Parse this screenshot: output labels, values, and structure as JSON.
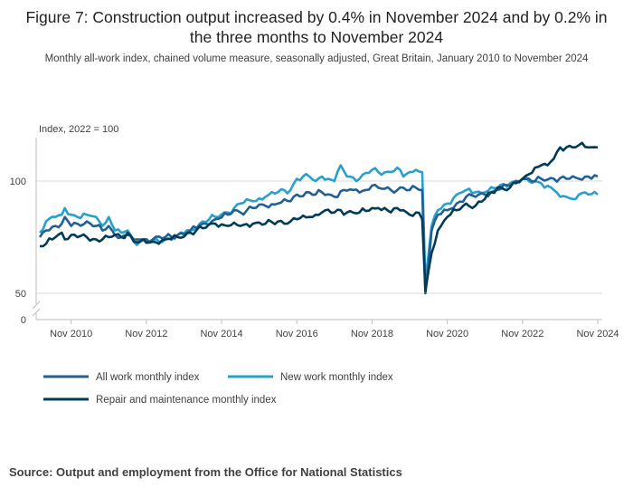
{
  "title": "Figure 7: Construction output increased by 0.4% in November 2024 and by 0.2% in the three months to November 2024",
  "subtitle": "Monthly all-work index, chained volume measure, seasonally adjusted, Great Britain, January 2010 to November 2024",
  "source": "Source: Output and employment from the Office for National Statistics",
  "colors": {
    "all_work": "#206095",
    "new_work": "#27a0cc",
    "repair": "#003c57",
    "grid": "#d9d9d9",
    "axis": "#bebebe"
  },
  "chart_data": {
    "type": "line",
    "ylabel": "Index, 2022 = 100",
    "y_ticks": [
      "0",
      "50",
      "100"
    ],
    "y_break": [
      0,
      50
    ],
    "ylim": [
      50,
      120
    ],
    "x_ticks": [
      {
        "label": "Nov 2010",
        "month_index": 10
      },
      {
        "label": "Nov 2012",
        "month_index": 34
      },
      {
        "label": "Nov 2014",
        "month_index": 58
      },
      {
        "label": "Nov 2016",
        "month_index": 82
      },
      {
        "label": "Nov 2018",
        "month_index": 106
      },
      {
        "label": "Nov 2020",
        "month_index": 130
      },
      {
        "label": "Nov 2022",
        "month_index": 154
      },
      {
        "label": "Nov 2024",
        "month_index": 178
      }
    ],
    "x_start": "Jan 2010",
    "x_end": "Nov 2024",
    "legend": [
      "All work monthly index",
      "New work monthly index",
      "Repair and maintenance monthly index"
    ],
    "series": [
      {
        "name": "All work monthly index",
        "key": "all_work",
        "keypoints": [
          [
            0,
            75
          ],
          [
            2,
            78
          ],
          [
            5,
            80
          ],
          [
            7,
            81
          ],
          [
            8,
            84
          ],
          [
            10,
            80
          ],
          [
            12,
            81
          ],
          [
            15,
            82
          ],
          [
            18,
            80
          ],
          [
            20,
            78
          ],
          [
            22,
            80
          ],
          [
            24,
            76
          ],
          [
            26,
            75
          ],
          [
            28,
            76
          ],
          [
            30,
            74
          ],
          [
            32,
            74
          ],
          [
            36,
            74
          ],
          [
            40,
            75
          ],
          [
            44,
            76
          ],
          [
            48,
            78
          ],
          [
            52,
            81
          ],
          [
            56,
            83
          ],
          [
            60,
            85
          ],
          [
            62,
            87
          ],
          [
            64,
            86
          ],
          [
            68,
            88
          ],
          [
            72,
            89
          ],
          [
            76,
            90
          ],
          [
            80,
            91
          ],
          [
            82,
            94
          ],
          [
            86,
            95
          ],
          [
            88,
            94
          ],
          [
            90,
            95
          ],
          [
            94,
            93
          ],
          [
            97,
            96
          ],
          [
            100,
            96
          ],
          [
            104,
            96
          ],
          [
            106,
            98
          ],
          [
            108,
            97
          ],
          [
            112,
            96
          ],
          [
            116,
            97
          ],
          [
            118,
            96
          ],
          [
            120,
            97
          ],
          [
            122,
            96
          ],
          [
            123,
            50
          ],
          [
            125,
            78
          ],
          [
            127,
            85
          ],
          [
            130,
            87
          ],
          [
            133,
            90
          ],
          [
            136,
            93
          ],
          [
            139,
            93
          ],
          [
            142,
            94
          ],
          [
            146,
            96
          ],
          [
            150,
            98
          ],
          [
            154,
            101
          ],
          [
            158,
            100
          ],
          [
            160,
            101
          ],
          [
            164,
            101
          ],
          [
            168,
            101
          ],
          [
            172,
            101
          ],
          [
            175,
            102
          ],
          [
            178,
            102
          ]
        ]
      },
      {
        "name": "New work monthly index",
        "key": "new_work",
        "keypoints": [
          [
            0,
            77
          ],
          [
            2,
            82
          ],
          [
            5,
            84
          ],
          [
            7,
            85
          ],
          [
            8,
            88
          ],
          [
            10,
            85
          ],
          [
            12,
            84
          ],
          [
            15,
            85
          ],
          [
            18,
            84
          ],
          [
            20,
            80
          ],
          [
            22,
            84
          ],
          [
            24,
            78
          ],
          [
            26,
            77
          ],
          [
            28,
            78
          ],
          [
            30,
            73
          ],
          [
            32,
            73
          ],
          [
            36,
            73
          ],
          [
            40,
            74
          ],
          [
            44,
            76
          ],
          [
            48,
            78
          ],
          [
            52,
            82
          ],
          [
            56,
            84
          ],
          [
            60,
            86
          ],
          [
            62,
            88
          ],
          [
            64,
            90
          ],
          [
            68,
            91
          ],
          [
            72,
            93
          ],
          [
            76,
            95
          ],
          [
            80,
            96
          ],
          [
            82,
            101
          ],
          [
            86,
            102
          ],
          [
            88,
            100
          ],
          [
            90,
            102
          ],
          [
            92,
            101
          ],
          [
            94,
            100
          ],
          [
            96,
            107
          ],
          [
            98,
            102
          ],
          [
            102,
            101
          ],
          [
            106,
            105
          ],
          [
            108,
            104
          ],
          [
            112,
            104
          ],
          [
            114,
            106
          ],
          [
            116,
            102
          ],
          [
            118,
            104
          ],
          [
            120,
            105
          ],
          [
            122,
            104
          ],
          [
            123,
            55
          ],
          [
            125,
            80
          ],
          [
            127,
            87
          ],
          [
            130,
            90
          ],
          [
            133,
            94
          ],
          [
            136,
            96
          ],
          [
            139,
            95
          ],
          [
            142,
            95
          ],
          [
            146,
            97
          ],
          [
            150,
            99
          ],
          [
            154,
            101
          ],
          [
            156,
            100
          ],
          [
            160,
            99
          ],
          [
            164,
            96
          ],
          [
            166,
            93
          ],
          [
            168,
            93
          ],
          [
            170,
            92
          ],
          [
            172,
            94
          ],
          [
            175,
            94
          ],
          [
            178,
            94
          ]
        ]
      },
      {
        "name": "Repair and maintenance monthly index",
        "key": "repair",
        "keypoints": [
          [
            0,
            71
          ],
          [
            2,
            72
          ],
          [
            5,
            75
          ],
          [
            7,
            77
          ],
          [
            8,
            74
          ],
          [
            10,
            76
          ],
          [
            12,
            75
          ],
          [
            15,
            75
          ],
          [
            18,
            74
          ],
          [
            20,
            74
          ],
          [
            22,
            75
          ],
          [
            24,
            76
          ],
          [
            26,
            75
          ],
          [
            28,
            77
          ],
          [
            30,
            73
          ],
          [
            32,
            73
          ],
          [
            36,
            73
          ],
          [
            40,
            74
          ],
          [
            44,
            75
          ],
          [
            48,
            77
          ],
          [
            52,
            79
          ],
          [
            56,
            81
          ],
          [
            60,
            80
          ],
          [
            64,
            80
          ],
          [
            68,
            81
          ],
          [
            72,
            81
          ],
          [
            76,
            82
          ],
          [
            80,
            82
          ],
          [
            82,
            83
          ],
          [
            86,
            84
          ],
          [
            88,
            85
          ],
          [
            90,
            86
          ],
          [
            94,
            86
          ],
          [
            96,
            87
          ],
          [
            98,
            86
          ],
          [
            102,
            86
          ],
          [
            106,
            88
          ],
          [
            108,
            88
          ],
          [
            112,
            86
          ],
          [
            114,
            88
          ],
          [
            116,
            87
          ],
          [
            118,
            85
          ],
          [
            120,
            86
          ],
          [
            122,
            83
          ],
          [
            123,
            51
          ],
          [
            125,
            68
          ],
          [
            127,
            78
          ],
          [
            130,
            84
          ],
          [
            133,
            87
          ],
          [
            136,
            90
          ],
          [
            139,
            89
          ],
          [
            142,
            92
          ],
          [
            146,
            97
          ],
          [
            150,
            97
          ],
          [
            154,
            101
          ],
          [
            156,
            103
          ],
          [
            158,
            106
          ],
          [
            160,
            107
          ],
          [
            162,
            107
          ],
          [
            164,
            110
          ],
          [
            166,
            115
          ],
          [
            168,
            115
          ],
          [
            170,
            115
          ],
          [
            172,
            116
          ],
          [
            175,
            115
          ],
          [
            178,
            115
          ]
        ]
      }
    ]
  }
}
